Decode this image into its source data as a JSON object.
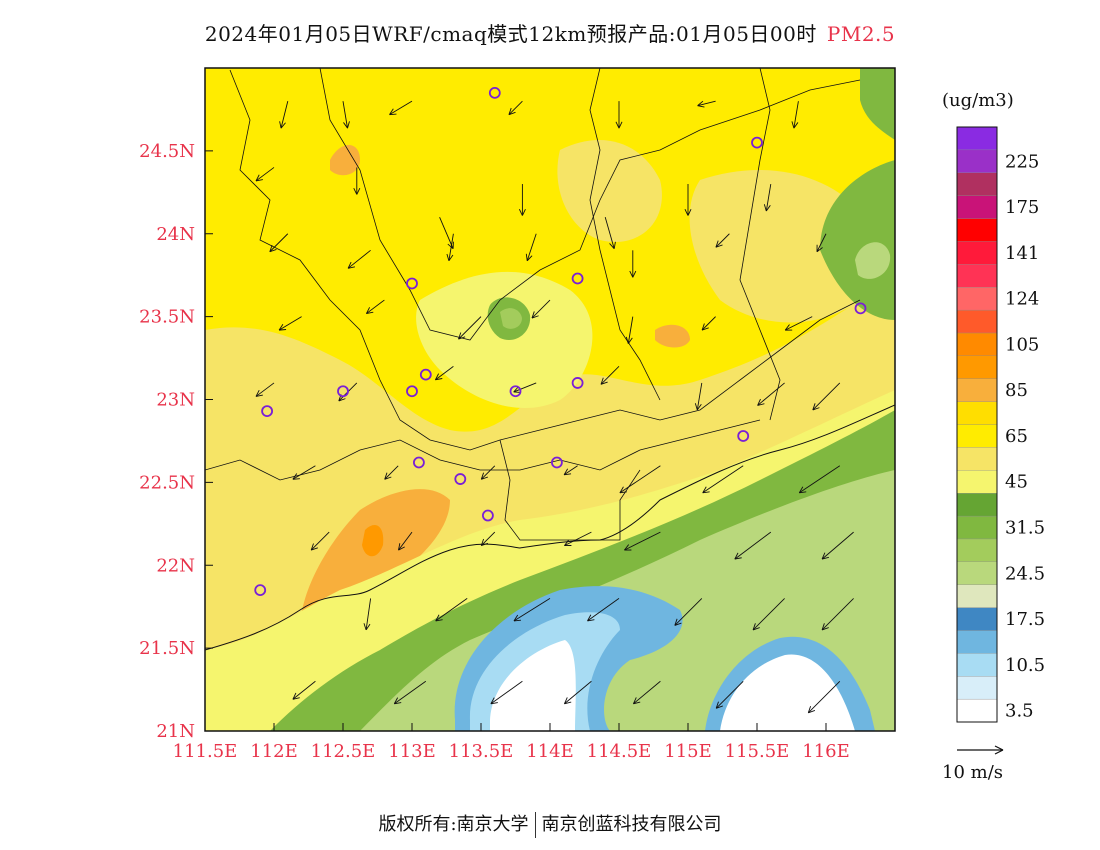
{
  "title": {
    "main": "2024年01月05日WRF/cmaq模式12km预报产品:01月05日00时",
    "pollutant": "PM2.5"
  },
  "map": {
    "lon_range": [
      111.5,
      116.5
    ],
    "lat_range": [
      21.0,
      25.0
    ],
    "lon_ticks": [
      "111.5E",
      "112E",
      "112.5E",
      "113E",
      "113.5E",
      "114E",
      "114.5E",
      "115E",
      "115.5E",
      "116E"
    ],
    "lat_ticks": [
      "21N",
      "21.5N",
      "22N",
      "22.5N",
      "23N",
      "23.5N",
      "24N",
      "24.5N"
    ],
    "tick_color": "#e8334a",
    "city_markers": [
      [
        113.6,
        24.85
      ],
      [
        115.5,
        24.55
      ],
      [
        113.0,
        23.7
      ],
      [
        114.2,
        23.73
      ],
      [
        116.25,
        23.55
      ],
      [
        112.5,
        23.05
      ],
      [
        113.0,
        23.05
      ],
      [
        113.1,
        23.15
      ],
      [
        113.75,
        23.05
      ],
      [
        114.2,
        23.1
      ],
      [
        111.95,
        22.93
      ],
      [
        115.4,
        22.78
      ],
      [
        113.05,
        22.62
      ],
      [
        114.05,
        22.62
      ],
      [
        113.35,
        22.52
      ],
      [
        113.55,
        22.3
      ],
      [
        111.9,
        21.85
      ]
    ],
    "wind_arrows": [
      [
        112.1,
        24.8,
        -0.15,
        -0.6
      ],
      [
        112.5,
        24.8,
        0.1,
        -0.6
      ],
      [
        113.0,
        24.8,
        -0.5,
        -0.3
      ],
      [
        113.8,
        24.8,
        -0.3,
        -0.3
      ],
      [
        114.5,
        24.8,
        0.0,
        -0.6
      ],
      [
        115.2,
        24.8,
        -0.4,
        -0.1
      ],
      [
        115.8,
        24.8,
        -0.1,
        -0.6
      ],
      [
        112.0,
        24.4,
        -0.4,
        -0.3
      ],
      [
        112.6,
        24.4,
        0.0,
        -0.6
      ],
      [
        113.2,
        24.1,
        0.3,
        -0.7
      ],
      [
        113.8,
        24.3,
        0.0,
        -0.7
      ],
      [
        114.4,
        24.1,
        0.2,
        -0.7
      ],
      [
        115.0,
        24.3,
        0.0,
        -0.7
      ],
      [
        115.6,
        24.3,
        -0.1,
        -0.6
      ],
      [
        112.1,
        24.0,
        -0.4,
        -0.4
      ],
      [
        112.7,
        23.9,
        -0.5,
        -0.4
      ],
      [
        113.3,
        24.0,
        -0.1,
        -0.6
      ],
      [
        113.9,
        24.0,
        -0.2,
        -0.6
      ],
      [
        114.6,
        23.9,
        0.0,
        -0.6
      ],
      [
        115.3,
        24.0,
        -0.3,
        -0.3
      ],
      [
        116.0,
        24.0,
        -0.2,
        -0.4
      ],
      [
        112.2,
        23.5,
        -0.5,
        -0.3
      ],
      [
        112.8,
        23.6,
        -0.4,
        -0.3
      ],
      [
        113.5,
        23.5,
        -0.5,
        -0.5
      ],
      [
        114.0,
        23.6,
        -0.4,
        -0.4
      ],
      [
        114.6,
        23.5,
        -0.1,
        -0.6
      ],
      [
        115.2,
        23.5,
        -0.3,
        -0.3
      ],
      [
        115.9,
        23.5,
        -0.6,
        -0.3
      ],
      [
        112.0,
        23.1,
        -0.4,
        -0.3
      ],
      [
        112.6,
        23.1,
        -0.4,
        -0.4
      ],
      [
        113.3,
        23.2,
        -0.4,
        -0.3
      ],
      [
        113.9,
        23.1,
        -0.5,
        -0.2
      ],
      [
        114.5,
        23.2,
        -0.4,
        -0.4
      ],
      [
        115.1,
        23.1,
        -0.1,
        -0.6
      ],
      [
        115.7,
        23.1,
        -0.6,
        -0.5
      ],
      [
        116.1,
        23.1,
        -0.6,
        -0.6
      ],
      [
        112.3,
        22.6,
        -0.5,
        -0.3
      ],
      [
        112.9,
        22.6,
        -0.3,
        -0.3
      ],
      [
        113.6,
        22.6,
        -0.3,
        -0.3
      ],
      [
        114.2,
        22.6,
        -0.3,
        -0.2
      ],
      [
        114.8,
        22.6,
        -0.9,
        -0.6
      ],
      [
        115.4,
        22.6,
        -0.9,
        -0.6
      ],
      [
        116.1,
        22.6,
        -0.9,
        -0.6
      ],
      [
        112.4,
        22.2,
        -0.4,
        -0.4
      ],
      [
        113.0,
        22.2,
        -0.3,
        -0.4
      ],
      [
        113.6,
        22.2,
        -0.3,
        -0.3
      ],
      [
        114.3,
        22.2,
        -0.6,
        -0.3
      ],
      [
        114.8,
        22.2,
        -0.8,
        -0.4
      ],
      [
        115.6,
        22.2,
        -0.8,
        -0.6
      ],
      [
        116.2,
        22.2,
        -0.7,
        -0.6
      ],
      [
        112.7,
        21.8,
        -0.1,
        -0.7
      ],
      [
        113.4,
        21.8,
        -0.7,
        -0.5
      ],
      [
        114.0,
        21.8,
        -0.8,
        -0.5
      ],
      [
        114.5,
        21.8,
        -0.7,
        -0.5
      ],
      [
        115.1,
        21.8,
        -0.6,
        -0.6
      ],
      [
        115.7,
        21.8,
        -0.7,
        -0.7
      ],
      [
        116.2,
        21.8,
        -0.7,
        -0.7
      ],
      [
        112.3,
        21.3,
        -0.5,
        -0.4
      ],
      [
        113.1,
        21.3,
        -0.7,
        -0.5
      ],
      [
        113.8,
        21.3,
        -0.7,
        -0.5
      ],
      [
        114.3,
        21.3,
        -0.6,
        -0.5
      ],
      [
        114.8,
        21.3,
        -0.6,
        -0.5
      ],
      [
        115.4,
        21.3,
        -0.6,
        -0.6
      ],
      [
        116.1,
        21.3,
        -0.7,
        -0.7
      ]
    ]
  },
  "legend": {
    "unit": "(ug/m3)",
    "bins": [
      {
        "color": "#ffffff",
        "label": "3.5"
      },
      {
        "color": "#d8eef9",
        "label": ""
      },
      {
        "color": "#a8dcf3",
        "label": "10.5"
      },
      {
        "color": "#6fb6e0",
        "label": ""
      },
      {
        "color": "#3f87c3",
        "label": "17.5"
      },
      {
        "color": "#dfe7bd",
        "label": ""
      },
      {
        "color": "#b9d87c",
        "label": "24.5"
      },
      {
        "color": "#a3cc5c",
        "label": ""
      },
      {
        "color": "#80b840",
        "label": "31.5"
      },
      {
        "color": "#65a533",
        "label": ""
      },
      {
        "color": "#f5f56e",
        "label": "45"
      },
      {
        "color": "#f6e466",
        "label": ""
      },
      {
        "color": "#ffec00",
        "label": "65"
      },
      {
        "color": "#ffde00",
        "label": ""
      },
      {
        "color": "#f8af3c",
        "label": "85"
      },
      {
        "color": "#ff9900",
        "label": ""
      },
      {
        "color": "#ff8a00",
        "label": "105"
      },
      {
        "color": "#ff5a2a",
        "label": ""
      },
      {
        "color": "#ff6666",
        "label": "124"
      },
      {
        "color": "#ff3355",
        "label": ""
      },
      {
        "color": "#ff1a3a",
        "label": "141"
      },
      {
        "color": "#ff0000",
        "label": ""
      },
      {
        "color": "#c91378",
        "label": "175"
      },
      {
        "color": "#b03060",
        "label": ""
      },
      {
        "color": "#9a30c8",
        "label": "225"
      },
      {
        "color": "#8a2be2",
        "label": ""
      }
    ]
  },
  "wind_reference": {
    "label": "10 m/s"
  },
  "footer": {
    "copyright_prefix": "版权所有:",
    "org1": "南京大学",
    "org2": "南京创蓝科技有限公司"
  }
}
